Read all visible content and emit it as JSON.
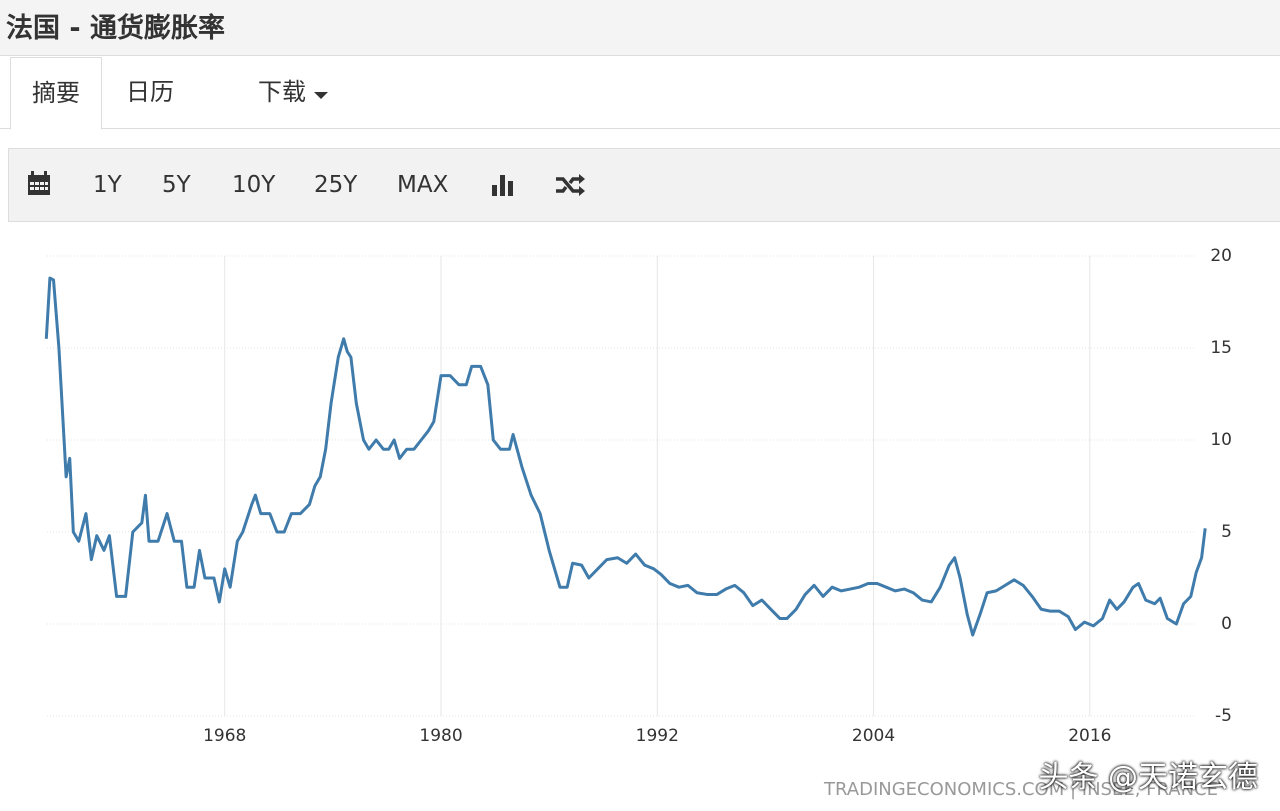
{
  "header": {
    "title": "法国 - 通货膨胀率"
  },
  "tabs": [
    "摘要",
    "日历",
    "下载"
  ],
  "toolbar": [
    "1Y",
    "5Y",
    "10Y",
    "25Y",
    "MAX"
  ],
  "footer": "TRADINGECONOMICS.COM | INSEE, FRANCE",
  "watermark": "头条 @天诺玄德",
  "chart_data": {
    "type": "line",
    "color": "#3f7bab",
    "grid": true,
    "xlim": [
      1958,
      2022.5
    ],
    "xticks": [
      1968,
      1980,
      1992,
      2004,
      2016
    ],
    "ylim": [
      -5,
      20
    ],
    "yticks": [
      -5,
      0,
      5,
      10,
      15,
      20
    ],
    "x": [
      1958.1,
      1958.3,
      1958.5,
      1958.8,
      1959.2,
      1959.4,
      1959.6,
      1959.9,
      1960.3,
      1960.6,
      1960.9,
      1961.3,
      1961.6,
      1962.0,
      1962.5,
      1962.9,
      1963.4,
      1963.6,
      1963.8,
      1964.3,
      1964.8,
      1965.2,
      1965.6,
      1965.9,
      1966.3,
      1966.6,
      1966.9,
      1967.4,
      1967.7,
      1968.0,
      1968.3,
      1968.7,
      1969.0,
      1969.5,
      1969.7,
      1970.0,
      1970.5,
      1970.9,
      1971.3,
      1971.7,
      1972.2,
      1972.7,
      1973.0,
      1973.3,
      1973.6,
      1973.9,
      1974.3,
      1974.6,
      1974.8,
      1975.0,
      1975.3,
      1975.7,
      1976.0,
      1976.4,
      1976.8,
      1977.1,
      1977.4,
      1977.7,
      1978.1,
      1978.5,
      1978.9,
      1979.3,
      1979.6,
      1980.0,
      1980.5,
      1981.0,
      1981.4,
      1981.7,
      1982.2,
      1982.6,
      1982.9,
      1983.3,
      1983.8,
      1984.0,
      1984.5,
      1985.0,
      1985.5,
      1986.0,
      1986.3,
      1986.6,
      1987.0,
      1987.3,
      1987.8,
      1988.2,
      1988.7,
      1989.2,
      1989.8,
      1990.3,
      1990.8,
      1991.3,
      1991.8,
      1992.2,
      1992.7,
      1993.2,
      1993.7,
      1994.2,
      1994.8,
      1995.3,
      1995.8,
      1996.3,
      1996.8,
      1997.3,
      1997.8,
      1998.3,
      1998.8,
      1999.2,
      1999.7,
      2000.2,
      2000.7,
      2001.2,
      2001.7,
      2002.2,
      2002.7,
      2003.2,
      2003.7,
      2004.2,
      2004.7,
      2005.2,
      2005.7,
      2006.2,
      2006.7,
      2007.2,
      2007.7,
      2008.2,
      2008.5,
      2008.8,
      2009.2,
      2009.5,
      2009.9,
      2010.3,
      2010.8,
      2011.3,
      2011.8,
      2012.3,
      2012.8,
      2013.3,
      2013.8,
      2014.3,
      2014.8,
      2015.2,
      2015.7,
      2016.2,
      2016.7,
      2017.1,
      2017.5,
      2017.9,
      2018.4,
      2018.7,
      2019.1,
      2019.6,
      2019.9,
      2020.3,
      2020.8,
      2021.2,
      2021.6,
      2021.9,
      2022.2,
      2022.4
    ],
    "values": [
      15.5,
      18.8,
      18.7,
      15,
      8,
      9,
      5,
      4.5,
      6,
      3.5,
      4.8,
      4,
      4.8,
      1.5,
      1.5,
      5,
      5.5,
      7,
      4.5,
      4.5,
      6,
      4.5,
      4.5,
      2,
      2,
      4,
      2.5,
      2.5,
      1.2,
      3,
      2,
      4.5,
      5,
      6.5,
      7,
      6,
      6,
      5,
      5,
      6,
      6,
      6.5,
      7.5,
      8,
      9.5,
      12,
      14.5,
      15.5,
      14.8,
      14.5,
      12,
      10,
      9.5,
      10,
      9.5,
      9.5,
      10,
      9,
      9.5,
      9.5,
      10,
      10.5,
      11,
      13.5,
      13.5,
      13,
      13,
      14,
      14,
      13,
      10,
      9.5,
      9.5,
      10.3,
      8.5,
      7,
      6,
      4,
      3,
      2,
      2,
      3.3,
      3.2,
      2.5,
      3,
      3.5,
      3.6,
      3.3,
      3.8,
      3.2,
      3,
      2.7,
      2.2,
      2,
      2.1,
      1.7,
      1.6,
      1.6,
      1.9,
      2.1,
      1.7,
      1,
      1.3,
      0.8,
      0.3,
      0.3,
      0.8,
      1.6,
      2.1,
      1.5,
      2,
      1.8,
      1.9,
      2,
      2.2,
      2.2,
      2,
      1.8,
      1.9,
      1.7,
      1.3,
      1.2,
      2,
      3.2,
      3.6,
      2.5,
      0.5,
      -0.6,
      0.5,
      1.7,
      1.8,
      2.1,
      2.4,
      2.1,
      1.5,
      0.8,
      0.7,
      0.7,
      0.4,
      -0.3,
      0.1,
      -0.1,
      0.3,
      1.3,
      0.8,
      1.2,
      2,
      2.2,
      1.3,
      1.1,
      1.4,
      0.3,
      0,
      1.1,
      1.5,
      2.8,
      3.6,
      5.2
    ]
  }
}
